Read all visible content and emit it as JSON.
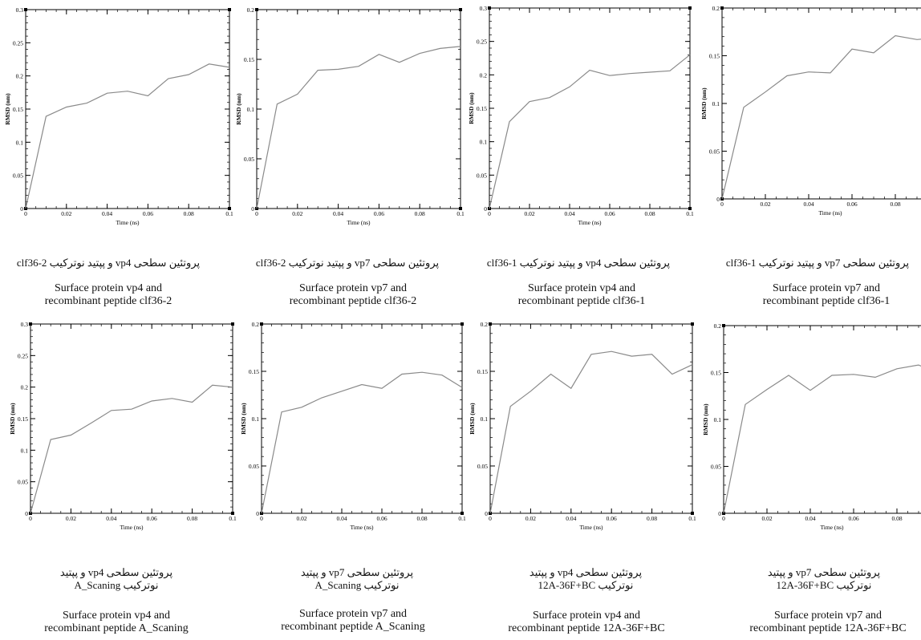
{
  "chart_data": [
    {
      "type": "line",
      "ylabel": "RMSD (nm)",
      "xlabel": "Time (ns)",
      "xlim": [
        0,
        0.1
      ],
      "ylim": [
        0,
        0.3
      ],
      "xticks": [
        "0",
        "0.02",
        "0.04",
        "0.06",
        "0.08",
        "0.1"
      ],
      "yticks": [
        "0",
        "0.05",
        "0.1",
        "0.15",
        "0.2",
        "0.25",
        "0.3"
      ],
      "x": [
        0,
        0.01,
        0.02,
        0.03,
        0.04,
        0.05,
        0.06,
        0.07,
        0.08,
        0.09,
        0.1
      ],
      "y": [
        0,
        0.139,
        0.153,
        0.159,
        0.174,
        0.177,
        0.17,
        0.196,
        0.202,
        0.218,
        0.213
      ],
      "caption_fa": "پروتئین سطحی vp4 و پپتید نوترکیب clf36-2",
      "caption_en": "Surface protein vp4 and\nrecombinant peptide clf36-2"
    },
    {
      "type": "line",
      "ylabel": "RMSD (nm)",
      "xlabel": "Time (ns)",
      "xlim": [
        0,
        0.1
      ],
      "ylim": [
        0,
        0.2
      ],
      "xticks": [
        "0",
        "0.02",
        "0.04",
        "0.06",
        "0.08",
        "0.1"
      ],
      "yticks": [
        "0",
        "0.05",
        "0.1",
        "0.15",
        "0.2"
      ],
      "x": [
        0,
        0.01,
        0.02,
        0.03,
        0.04,
        0.05,
        0.06,
        0.07,
        0.08,
        0.09,
        0.1
      ],
      "y": [
        0,
        0.105,
        0.115,
        0.139,
        0.14,
        0.143,
        0.155,
        0.147,
        0.156,
        0.161,
        0.163
      ],
      "caption_fa": "پروتئین سطحی vp7 و پپتید نوترکیب clf36-2",
      "caption_en": "Surface protein vp7 and\nrecombinant peptide clf36-2"
    },
    {
      "type": "line",
      "ylabel": "RMSD (nm)",
      "xlabel": "Time (ns)",
      "xlim": [
        0,
        0.1
      ],
      "ylim": [
        0,
        0.3
      ],
      "xticks": [
        "0",
        "0.02",
        "0.04",
        "0.06",
        "0.08",
        "0.1"
      ],
      "yticks": [
        "0",
        "0.05",
        "0.1",
        "0.15",
        "0.2",
        "0.25",
        "0.3"
      ],
      "x": [
        0,
        0.01,
        0.02,
        0.03,
        0.04,
        0.05,
        0.06,
        0.07,
        0.08,
        0.09,
        0.1
      ],
      "y": [
        0,
        0.13,
        0.16,
        0.166,
        0.182,
        0.207,
        0.199,
        0.202,
        0.204,
        0.206,
        0.23
      ],
      "caption_fa": "پروتئین سطحی vp4 و پپتید نوترکیب clf36-1",
      "caption_en": "Surface protein vp4 and\nrecombinant peptide clf36-1"
    },
    {
      "type": "line",
      "ylabel": "RMSD (nm)",
      "xlabel": "Time (ns)",
      "xlim": [
        0,
        0.1
      ],
      "ylim": [
        0,
        0.2
      ],
      "xticks": [
        "0",
        "0.02",
        "0.04",
        "0.06",
        "0.08"
      ],
      "yticks": [
        "0",
        "0.05",
        "0.1",
        "0.15",
        "0.2"
      ],
      "x": [
        0,
        0.01,
        0.02,
        0.03,
        0.04,
        0.05,
        0.06,
        0.07,
        0.08,
        0.09,
        0.1
      ],
      "y": [
        0,
        0.096,
        0.112,
        0.129,
        0.133,
        0.132,
        0.157,
        0.153,
        0.171,
        0.167,
        0.169
      ],
      "caption_fa": "پروتئین سطحی vp7 و پپتید نوترکیب clf36-1",
      "caption_en": "Surface protein vp7 and\nrecombinant peptide clf36-1"
    },
    {
      "type": "line",
      "ylabel": "RMSD (nm)",
      "xlabel": "Time (ns)",
      "xlim": [
        0,
        0.1
      ],
      "ylim": [
        0,
        0.3
      ],
      "xticks": [
        "0",
        "0.02",
        "0.04",
        "0.06",
        "0.08",
        "0.1"
      ],
      "yticks": [
        "0",
        "0.05",
        "0.1",
        "0.15",
        "0.2",
        "0.25",
        "0.3"
      ],
      "x": [
        0,
        0.01,
        0.02,
        0.03,
        0.04,
        0.05,
        0.06,
        0.07,
        0.08,
        0.09,
        0.1
      ],
      "y": [
        0,
        0.117,
        0.124,
        0.143,
        0.163,
        0.165,
        0.178,
        0.182,
        0.176,
        0.203,
        0.2
      ],
      "caption_fa": "پروتئین سطحی vp4 و پپتید\nنوترکیب A_Scaning",
      "caption_en": "Surface protein vp4 and\nrecombinant peptide A_Scaning"
    },
    {
      "type": "line",
      "ylabel": "RMSD (nm)",
      "xlabel": "Time (ns)",
      "xlim": [
        0,
        0.1
      ],
      "ylim": [
        0,
        0.2
      ],
      "xticks": [
        "0",
        "0.02",
        "0.04",
        "0.06",
        "0.08",
        "0.1"
      ],
      "yticks": [
        "0",
        "0.05",
        "0.1",
        "0.15",
        "0.2"
      ],
      "x": [
        0,
        0.01,
        0.02,
        0.03,
        0.04,
        0.05,
        0.06,
        0.07,
        0.08,
        0.09,
        0.1
      ],
      "y": [
        0,
        0.107,
        0.112,
        0.122,
        0.129,
        0.136,
        0.132,
        0.147,
        0.149,
        0.146,
        0.133
      ],
      "caption_fa": "پروتئین سطحی vp7 و پپتید\nنوترکیب A_Scaning",
      "caption_en": "Surface protein vp7 and\nrecombinant peptide A_Scaning"
    },
    {
      "type": "line",
      "ylabel": "RMSD (nm)",
      "xlabel": "Time (ns)",
      "xlim": [
        0,
        0.1
      ],
      "ylim": [
        0,
        0.2
      ],
      "xticks": [
        "0",
        "0.02",
        "0.04",
        "0.06",
        "0.08",
        "0.1"
      ],
      "yticks": [
        "0",
        "0.05",
        "0.1",
        "0.15",
        "0.2"
      ],
      "x": [
        0,
        0.01,
        0.02,
        0.03,
        0.04,
        0.05,
        0.06,
        0.07,
        0.08,
        0.09,
        0.1
      ],
      "y": [
        0,
        0.113,
        0.129,
        0.147,
        0.132,
        0.168,
        0.171,
        0.166,
        0.168,
        0.147,
        0.157
      ],
      "caption_fa": "پروتئین سطحی vp4 و پپتید\nنوترکیب 12A-36F+BC",
      "caption_en": "Surface protein vp4 and\nrecombinant peptide 12A-36F+BC"
    },
    {
      "type": "line",
      "ylabel": "RMSD (nm)",
      "xlabel": "Time (ns)",
      "xlim": [
        0,
        0.1
      ],
      "ylim": [
        0,
        0.2
      ],
      "xticks": [
        "0",
        "0.02",
        "0.04",
        "0.06",
        "0.08"
      ],
      "yticks": [
        "0",
        "0.05",
        "0.1",
        "0.15",
        "0.2"
      ],
      "x": [
        0,
        0.01,
        0.02,
        0.03,
        0.04,
        0.05,
        0.06,
        0.07,
        0.08,
        0.09,
        0.1
      ],
      "y": [
        0,
        0.116,
        0.132,
        0.147,
        0.131,
        0.147,
        0.148,
        0.145,
        0.154,
        0.158,
        0.148
      ],
      "caption_fa": "پروتئین سطحی vp7 و پپتید\nنوترکیب 12A-36F+BC",
      "caption_en": "Surface protein vp7 and\nrecombinant peptide 12A-36F+BC"
    }
  ]
}
